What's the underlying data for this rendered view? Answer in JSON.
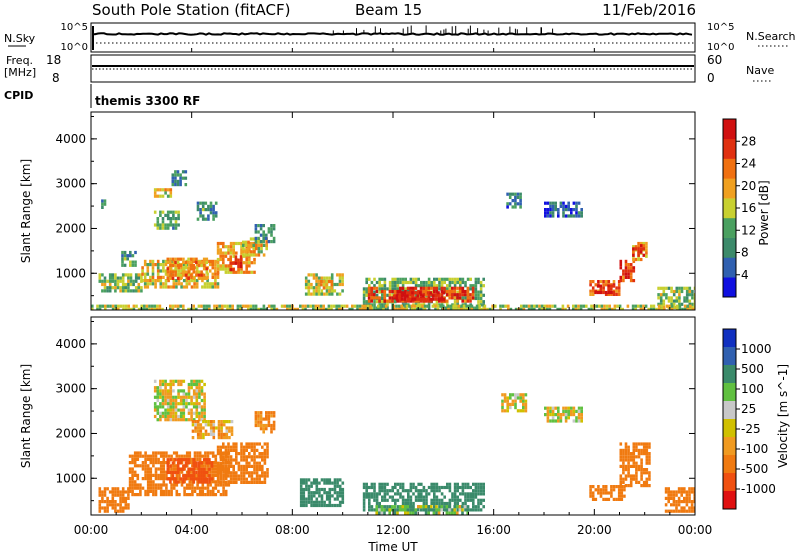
{
  "header": {
    "station": "South Pole Station (fitACF)",
    "beam": "Beam 15",
    "date": "11/Feb/2016"
  },
  "top_panels": {
    "nsky_label": "N.Sky",
    "nsearch_label": "N.Search",
    "noise_ticks": [
      "10^5",
      "10^0"
    ],
    "freq_label": "Freq.",
    "freq_unit": "[MHz]",
    "freq_ticks": [
      "18",
      "8"
    ],
    "nave_label": "Nave",
    "nave_ticks": [
      "60",
      "0"
    ],
    "cpid_label": "CPID",
    "cpid_value": "themis 3300 RF"
  },
  "colors": {
    "power_scale": [
      "#1010e0",
      "#3060b0",
      "#3c8a6a",
      "#4aa060",
      "#c8d030",
      "#f0a020",
      "#f07010",
      "#e03010",
      "#d01010"
    ],
    "velocity_scale": [
      "#e01010",
      "#f05010",
      "#f07a10",
      "#f09a20",
      "#d0c000",
      "#c8c8c8",
      "#60c040",
      "#3a8a6a",
      "#3060b0",
      "#1030c0"
    ]
  },
  "chart_data": [
    {
      "type": "heatmap",
      "name": "power",
      "xlabel": "Time UT",
      "ylabel": "Slant Range [km]",
      "xlim": [
        0,
        24
      ],
      "ylim": [
        180,
        4600
      ],
      "y_ticks": [
        "1000",
        "2000",
        "3000",
        "4000"
      ],
      "colorbar_label": "Power [dB]",
      "colorbar_ticks": [
        "4",
        "8",
        "12",
        "16",
        "20",
        "24",
        "28"
      ],
      "colorbar_range": [
        0,
        32
      ],
      "regions": [
        {
          "t0": 0.4,
          "t1": 0.6,
          "r0": 2500,
          "r1": 2650,
          "value": 8
        },
        {
          "t0": 0.3,
          "t1": 2.0,
          "r0": 600,
          "r1": 1000,
          "value": 14
        },
        {
          "t0": 1.2,
          "t1": 1.8,
          "r0": 1200,
          "r1": 1500,
          "value": 10
        },
        {
          "t0": 2.0,
          "t1": 5.0,
          "r0": 700,
          "r1": 1300,
          "value": 18
        },
        {
          "t0": 3.0,
          "t1": 4.6,
          "r0": 900,
          "r1": 1350,
          "value": 22
        },
        {
          "t0": 2.5,
          "t1": 3.5,
          "r0": 2000,
          "r1": 2400,
          "value": 12
        },
        {
          "t0": 2.5,
          "t1": 3.2,
          "r0": 2700,
          "r1": 2900,
          "value": 18
        },
        {
          "t0": 3.2,
          "t1": 3.8,
          "r0": 3000,
          "r1": 3300,
          "value": 8
        },
        {
          "t0": 4.2,
          "t1": 5.0,
          "r0": 2200,
          "r1": 2600,
          "value": 10
        },
        {
          "t0": 5.0,
          "t1": 6.5,
          "r0": 1000,
          "r1": 1700,
          "value": 20
        },
        {
          "t0": 5.5,
          "t1": 6.0,
          "r0": 1100,
          "r1": 1400,
          "value": 26
        },
        {
          "t0": 6.0,
          "t1": 7.0,
          "r0": 1400,
          "r1": 1800,
          "value": 18
        },
        {
          "t0": 6.5,
          "t1": 7.3,
          "r0": 1700,
          "r1": 2100,
          "value": 10
        },
        {
          "t0": 8.5,
          "t1": 10.0,
          "r0": 500,
          "r1": 1000,
          "value": 16
        },
        {
          "t0": 9.0,
          "t1": 9.6,
          "r0": 600,
          "r1": 850,
          "value": 20
        },
        {
          "t0": 10.8,
          "t1": 15.6,
          "r0": 250,
          "r1": 900,
          "value": 12
        },
        {
          "t0": 11.0,
          "t1": 15.2,
          "r0": 380,
          "r1": 700,
          "value": 26
        },
        {
          "t0": 12.0,
          "t1": 14.0,
          "r0": 450,
          "r1": 600,
          "value": 30
        },
        {
          "t0": 16.5,
          "t1": 17.1,
          "r0": 2500,
          "r1": 2800,
          "value": 8
        },
        {
          "t0": 18.0,
          "t1": 19.5,
          "r0": 2300,
          "r1": 2600,
          "value": 6
        },
        {
          "t0": 19.8,
          "t1": 21.0,
          "r0": 550,
          "r1": 850,
          "value": 24
        },
        {
          "t0": 20.0,
          "t1": 20.8,
          "r0": 600,
          "r1": 750,
          "value": 30
        },
        {
          "t0": 21.0,
          "t1": 21.6,
          "r0": 800,
          "r1": 1300,
          "value": 26
        },
        {
          "t0": 21.5,
          "t1": 22.1,
          "r0": 1300,
          "r1": 1700,
          "value": 20
        },
        {
          "t0": 21.5,
          "t1": 22.0,
          "r0": 1400,
          "r1": 1650,
          "value": 28
        },
        {
          "t0": 22.5,
          "t1": 24.0,
          "r0": 250,
          "r1": 700,
          "value": 14
        },
        {
          "t0": 0.0,
          "t1": 24.0,
          "r0": 180,
          "r1": 300,
          "value": 16
        }
      ]
    },
    {
      "type": "heatmap",
      "name": "velocity",
      "xlabel": "Time UT",
      "ylabel": "Slant Range [km]",
      "xlim": [
        0,
        24
      ],
      "ylim": [
        180,
        4600
      ],
      "x_ticks": [
        "00:00",
        "04:00",
        "08:00",
        "12:00",
        "16:00",
        "20:00",
        "00:00"
      ],
      "y_ticks": [
        "1000",
        "2000",
        "3000",
        "4000"
      ],
      "colorbar_label": "Velocity [m s^-1]",
      "colorbar_ticks": [
        "1000",
        "500",
        "100",
        "25",
        "-25",
        "-100",
        "-500",
        "-1000"
      ],
      "regions": [
        {
          "t0": 0.3,
          "t1": 1.5,
          "r0": 250,
          "r1": 800,
          "value": -300
        },
        {
          "t0": 1.5,
          "t1": 5.5,
          "r0": 650,
          "r1": 1600,
          "value": -400
        },
        {
          "t0": 3.0,
          "t1": 4.8,
          "r0": 900,
          "r1": 1450,
          "value": -600
        },
        {
          "t0": 5.0,
          "t1": 7.0,
          "r0": 900,
          "r1": 1800,
          "value": -400
        },
        {
          "t0": 2.5,
          "t1": 4.5,
          "r0": 2300,
          "r1": 3200,
          "value": 0
        },
        {
          "t0": 4.0,
          "t1": 5.6,
          "r0": 1900,
          "r1": 2300,
          "value": -60
        },
        {
          "t0": 6.5,
          "t1": 7.3,
          "r0": 2000,
          "r1": 2500,
          "value": -150
        },
        {
          "t0": 8.3,
          "t1": 10.0,
          "r0": 400,
          "r1": 1000,
          "value": 300
        },
        {
          "t0": 10.8,
          "t1": 15.6,
          "r0": 300,
          "r1": 900,
          "value": 300
        },
        {
          "t0": 11.3,
          "t1": 15.0,
          "r0": 220,
          "r1": 400,
          "value": 60
        },
        {
          "t0": 16.3,
          "t1": 17.3,
          "r0": 2500,
          "r1": 2900,
          "value": 0
        },
        {
          "t0": 18.0,
          "t1": 19.5,
          "r0": 2300,
          "r1": 2600,
          "value": 0
        },
        {
          "t0": 19.8,
          "t1": 21.2,
          "r0": 550,
          "r1": 850,
          "value": -300
        },
        {
          "t0": 21.0,
          "t1": 22.2,
          "r0": 800,
          "r1": 1800,
          "value": -250
        },
        {
          "t0": 22.8,
          "t1": 24.0,
          "r0": 250,
          "r1": 800,
          "value": -200
        }
      ]
    }
  ]
}
